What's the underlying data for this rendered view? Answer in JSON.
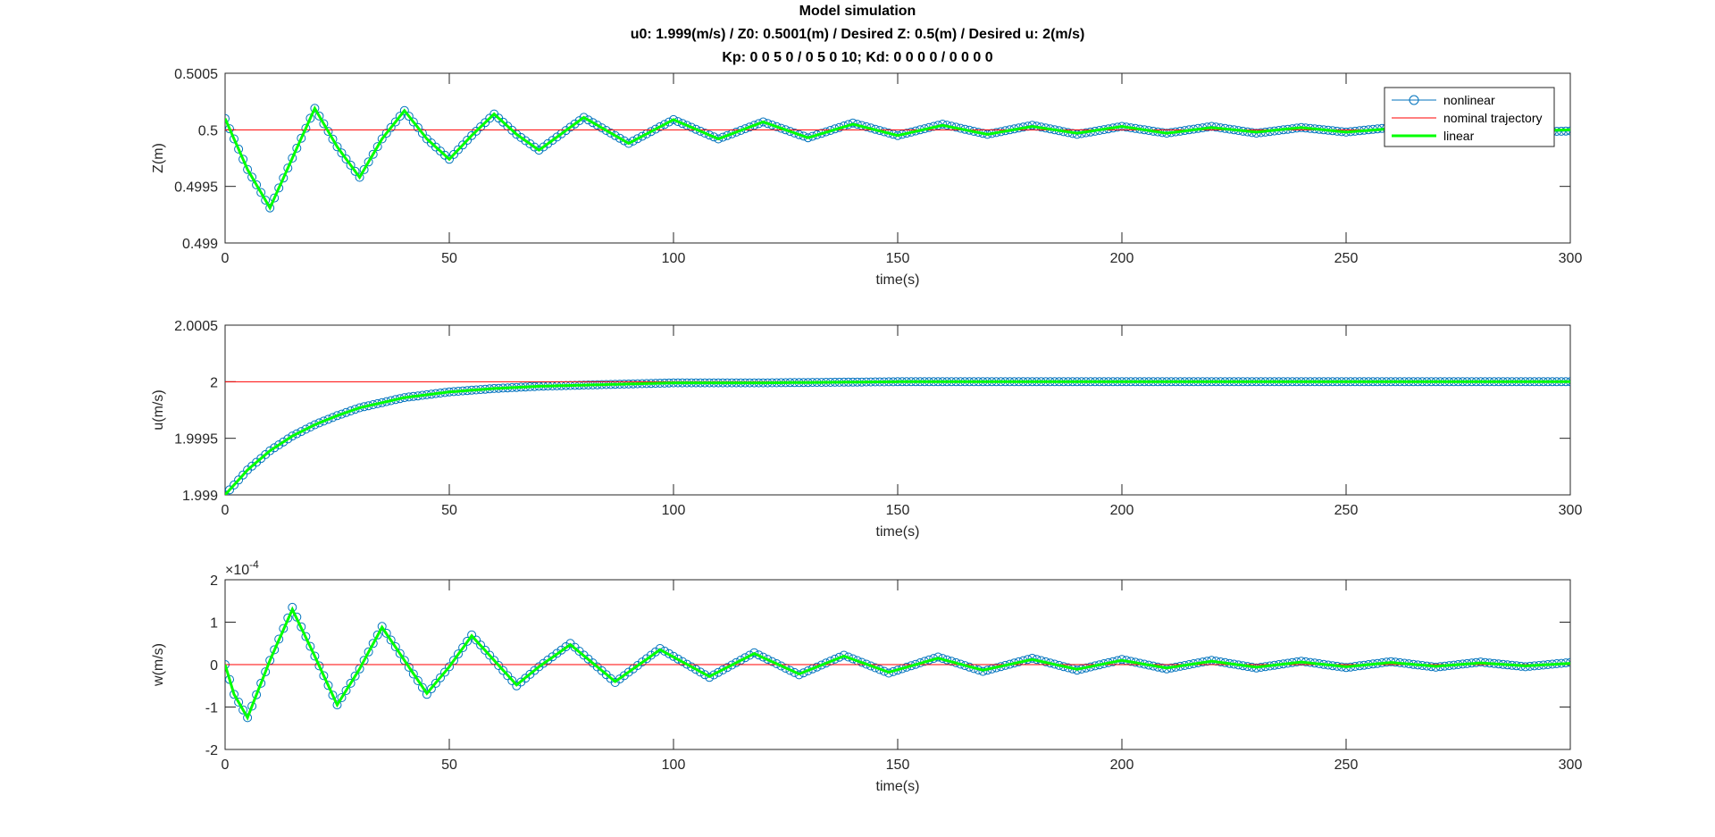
{
  "figure": {
    "title_lines": [
      "Model simulation",
      "u0: 1.999(m/s) / Z0: 0.5001(m) / Desired Z: 0.5(m) / Desired u: 2(m/s)",
      "Kp: 0  0  5  0 / 0   5   0  10; Kd: 0  0  0  0 / 0  0  0  0"
    ],
    "colors": {
      "nonlinear": "#0072BD",
      "nominal": "#FF0000",
      "linear": "#00FF00",
      "axes": "#262626"
    }
  },
  "chart_data": [
    {
      "type": "line",
      "title": "",
      "xlabel": "time(s)",
      "ylabel": "Z(m)",
      "xlim": [
        0,
        300
      ],
      "ylim": [
        0.499,
        0.5005
      ],
      "xticks": [
        0,
        50,
        100,
        150,
        200,
        250,
        300
      ],
      "xtick_labels": [
        "0",
        "50",
        "100",
        "150",
        "200",
        "250",
        "300"
      ],
      "yticks": [
        0.499,
        0.4995,
        0.5,
        0.5005
      ],
      "ytick_labels": [
        "0.499",
        "0.4995",
        "0.5",
        "0.5005"
      ],
      "grid": false,
      "legend": {
        "location": "top-right",
        "entries": [
          "nonlinear",
          "nominal trajectory",
          "linear"
        ]
      },
      "series": [
        {
          "name": "nonlinear",
          "style": "line-with-circles",
          "x": [
            0,
            5,
            10,
            15,
            20,
            25,
            30,
            35,
            40,
            45,
            50,
            55,
            60,
            65,
            70,
            80,
            90,
            100,
            110,
            120,
            130,
            140,
            150,
            160,
            170,
            180,
            190,
            200,
            210,
            220,
            230,
            240,
            250,
            260,
            270,
            280,
            290,
            300
          ],
          "y": [
            0.5001,
            0.49965,
            0.49931,
            0.49975,
            0.50019,
            0.49985,
            0.49958,
            0.49992,
            0.50017,
            0.49992,
            0.49974,
            0.49995,
            0.50014,
            0.49996,
            0.49982,
            0.50011,
            0.49988,
            0.50009,
            0.49992,
            0.50007,
            0.49993,
            0.50006,
            0.49995,
            0.50005,
            0.49996,
            0.50004,
            0.49996,
            0.50003,
            0.49997,
            0.50003,
            0.49997,
            0.50002,
            0.49998,
            0.50002,
            0.49998,
            0.50002,
            0.49998,
            0.49999
          ]
        },
        {
          "name": "nominal trajectory",
          "style": "line",
          "x": [
            0,
            300
          ],
          "y": [
            0.5,
            0.5
          ]
        },
        {
          "name": "linear",
          "style": "thick-line",
          "x": [
            0,
            5,
            10,
            15,
            20,
            25,
            30,
            35,
            40,
            45,
            50,
            55,
            60,
            65,
            70,
            80,
            90,
            100,
            110,
            120,
            130,
            140,
            150,
            160,
            170,
            180,
            190,
            200,
            210,
            220,
            230,
            240,
            250,
            260,
            270,
            280,
            290,
            300
          ],
          "y": [
            0.5001,
            0.49965,
            0.49931,
            0.49975,
            0.50019,
            0.49985,
            0.49958,
            0.49992,
            0.50017,
            0.49992,
            0.49974,
            0.49995,
            0.50014,
            0.49996,
            0.49982,
            0.50011,
            0.49988,
            0.50009,
            0.49992,
            0.50007,
            0.49993,
            0.50005,
            0.49995,
            0.50004,
            0.49996,
            0.50003,
            0.49997,
            0.50003,
            0.49997,
            0.50002,
            0.49998,
            0.50002,
            0.49998,
            0.50001,
            0.49999,
            0.50001,
            0.49999,
            0.5
          ]
        }
      ]
    },
    {
      "type": "line",
      "title": "",
      "xlabel": "time(s)",
      "ylabel": "u(m/s)",
      "xlim": [
        0,
        300
      ],
      "ylim": [
        1.999,
        2.0005
      ],
      "xticks": [
        0,
        50,
        100,
        150,
        200,
        250,
        300
      ],
      "xtick_labels": [
        "0",
        "50",
        "100",
        "150",
        "200",
        "250",
        "300"
      ],
      "yticks": [
        1.999,
        1.9995,
        2,
        2.0005
      ],
      "ytick_labels": [
        "1.999",
        "1.9995",
        "2",
        "2.0005"
      ],
      "grid": false,
      "series": [
        {
          "name": "nonlinear",
          "style": "line-with-circles",
          "x": [
            0,
            5,
            10,
            15,
            20,
            25,
            30,
            40,
            50,
            60,
            70,
            80,
            90,
            100,
            120,
            150,
            200,
            250,
            300
          ],
          "y": [
            1.999,
            1.99922,
            1.99939,
            1.99952,
            1.99962,
            1.9997,
            1.99977,
            1.99986,
            1.99991,
            1.99994,
            1.99996,
            1.99997,
            1.99998,
            1.99999,
            1.99999,
            2,
            2,
            2,
            2
          ]
        },
        {
          "name": "nominal trajectory",
          "style": "line",
          "x": [
            0,
            300
          ],
          "y": [
            2,
            2
          ]
        },
        {
          "name": "linear",
          "style": "thick-line",
          "x": [
            0,
            5,
            10,
            15,
            20,
            25,
            30,
            40,
            50,
            60,
            70,
            80,
            90,
            100,
            120,
            150,
            200,
            250,
            300
          ],
          "y": [
            1.999,
            1.99922,
            1.99939,
            1.99952,
            1.99962,
            1.9997,
            1.99977,
            1.99986,
            1.99991,
            1.99994,
            1.99996,
            1.99997,
            1.99998,
            1.99999,
            1.99999,
            2,
            2,
            2,
            2
          ]
        }
      ]
    },
    {
      "type": "line",
      "title": "",
      "xlabel": "time(s)",
      "ylabel": "w(m/s)",
      "exponent_label": "×10^-4",
      "exponent_base": "×10",
      "exponent_power": "-4",
      "xlim": [
        0,
        300
      ],
      "ylim": [
        -2,
        2
      ],
      "xticks": [
        0,
        50,
        100,
        150,
        200,
        250,
        300
      ],
      "xtick_labels": [
        "0",
        "50",
        "100",
        "150",
        "200",
        "250",
        "300"
      ],
      "yticks": [
        -2,
        -1,
        0,
        1,
        2
      ],
      "ytick_labels": [
        "-2",
        "-1",
        "0",
        "1",
        "2"
      ],
      "grid": false,
      "series": [
        {
          "name": "nonlinear",
          "style": "line-with-circles",
          "x": [
            0,
            2,
            5,
            10,
            15,
            20,
            25,
            30,
            35,
            40,
            45,
            50,
            55,
            60,
            65,
            70,
            77,
            87,
            97,
            108,
            118,
            128,
            138,
            148,
            159,
            169,
            180,
            190,
            200,
            210,
            220,
            230,
            240,
            250,
            260,
            270,
            280,
            290,
            300
          ],
          "y": [
            0,
            -0.7,
            -1.25,
            0.1,
            1.35,
            0.2,
            -0.95,
            -0.1,
            0.9,
            0.1,
            -0.7,
            -0.05,
            0.7,
            0.1,
            -0.5,
            -0.05,
            0.5,
            -0.42,
            0.38,
            -0.3,
            0.28,
            -0.24,
            0.22,
            -0.2,
            0.18,
            -0.16,
            0.15,
            -0.13,
            0.12,
            -0.1,
            0.1,
            -0.08,
            0.08,
            -0.07,
            0.07,
            -0.06,
            0.06,
            -0.05,
            0.05
          ]
        },
        {
          "name": "nominal trajectory",
          "style": "line",
          "x": [
            0,
            300
          ],
          "y": [
            0,
            0
          ]
        },
        {
          "name": "linear",
          "style": "thick-line",
          "x": [
            0,
            2,
            5,
            10,
            15,
            20,
            25,
            30,
            35,
            40,
            45,
            50,
            55,
            60,
            65,
            70,
            77,
            87,
            97,
            108,
            118,
            128,
            138,
            148,
            159,
            169,
            180,
            190,
            200,
            210,
            220,
            230,
            240,
            250,
            260,
            270,
            280,
            290,
            300
          ],
          "y": [
            0,
            -0.7,
            -1.25,
            0.1,
            1.3,
            0.2,
            -0.95,
            -0.1,
            0.88,
            0.1,
            -0.68,
            -0.05,
            0.68,
            0.1,
            -0.48,
            -0.05,
            0.47,
            -0.4,
            0.35,
            -0.28,
            0.26,
            -0.22,
            0.2,
            -0.18,
            0.15,
            -0.13,
            0.12,
            -0.11,
            0.1,
            -0.08,
            0.08,
            -0.06,
            0.06,
            -0.05,
            0.05,
            -0.04,
            0.04,
            -0.03,
            0.03
          ]
        }
      ]
    }
  ]
}
